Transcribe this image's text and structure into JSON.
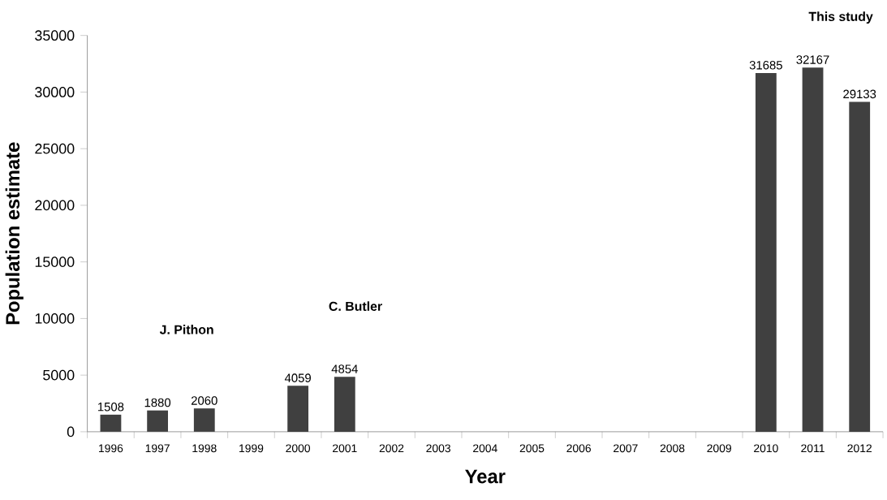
{
  "chart_data": {
    "type": "bar",
    "xlabel": "Year",
    "ylabel": "Population estimate",
    "categories": [
      "1996",
      "1997",
      "1998",
      "1999",
      "2000",
      "2001",
      "2002",
      "2003",
      "2004",
      "2005",
      "2006",
      "2007",
      "2008",
      "2009",
      "2010",
      "2011",
      "2012"
    ],
    "values": [
      1508,
      1880,
      2060,
      null,
      4059,
      4854,
      null,
      null,
      null,
      null,
      null,
      null,
      null,
      null,
      31685,
      32167,
      29133
    ],
    "color": "#404040",
    "data_labels": true,
    "ylim": [
      0,
      35000
    ],
    "yticks": [
      0,
      5000,
      10000,
      15000,
      20000,
      25000,
      30000,
      35000
    ],
    "annotations": [
      "J. Pithon",
      "C. Butler",
      "This study"
    ]
  }
}
